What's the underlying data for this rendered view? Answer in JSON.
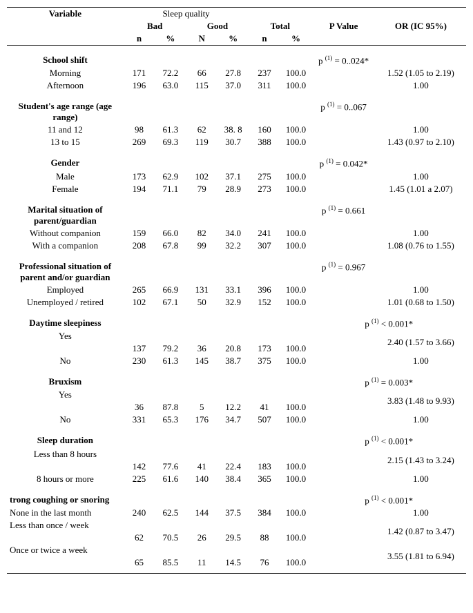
{
  "header": {
    "variable": "Variable",
    "sleep_quality": "Sleep quality",
    "bad": "Bad",
    "good": "Good",
    "total": "Total",
    "p_value": "P Value",
    "or": "OR (IC 95%)",
    "n": "n",
    "N": "N",
    "pct": "%"
  },
  "sections": [
    {
      "title": "School shift",
      "p": "p ⁽¹⁾ = 0..024*",
      "rows": [
        {
          "label": "Morning",
          "bn": "171",
          "bp": "72.2",
          "gn": "66",
          "gp": "27.8",
          "tn": "237",
          "tp": "100.0",
          "or": "1.52 (1.05 to 2.19)"
        },
        {
          "label": "Afternoon",
          "bn": "196",
          "bp": "63.0",
          "gn": "115",
          "gp": "37.0",
          "tn": "311",
          "tp": "100.0",
          "or": "1.00"
        }
      ]
    },
    {
      "title": "Student's age range (age range)",
      "p": "p ⁽¹⁾ = 0..067",
      "rows": [
        {
          "label": "11 and 12",
          "bn": "98",
          "bp": "61.3",
          "gn": "62",
          "gp": "38. 8",
          "tn": "160",
          "tp": "100.0",
          "or": "1.00"
        },
        {
          "label": "13 to 15",
          "bn": "269",
          "bp": "69.3",
          "gn": "119",
          "gp": "30.7",
          "tn": "388",
          "tp": "100.0",
          "or": "1.43 (0.97 to 2.10)"
        }
      ]
    },
    {
      "title": "Gender",
      "p": "p ⁽¹⁾ = 0.042*",
      "rows": [
        {
          "label": "Male",
          "bn": "173",
          "bp": "62.9",
          "gn": "102",
          "gp": "37.1",
          "tn": "275",
          "tp": "100.0",
          "or": "1.00"
        },
        {
          "label": "Female",
          "bn": "194",
          "bp": "71.1",
          "gn": "79",
          "gp": "28.9",
          "tn": "273",
          "tp": "100.0",
          "or": "1.45 (1.01 a 2.07)"
        }
      ]
    },
    {
      "title": "Marital situation of parent/guardian",
      "p": "p ⁽¹⁾ = 0.661",
      "rows": [
        {
          "label": "Without companion",
          "bn": "159",
          "bp": "66.0",
          "gn": "82",
          "gp": "34.0",
          "tn": "241",
          "tp": "100.0",
          "or": "1.00"
        },
        {
          "label": "With a companion",
          "bn": "208",
          "bp": "67.8",
          "gn": "99",
          "gp": "32.2",
          "tn": "307",
          "tp": "100.0",
          "or": "1.08 (0.76 to 1.55)"
        }
      ]
    },
    {
      "title": "Professional situation of parent and/or guardian",
      "p": "p ⁽¹⁾ = 0.967",
      "rows": [
        {
          "label": "Employed",
          "bn": "265",
          "bp": "66.9",
          "gn": "131",
          "gp": "33.1",
          "tn": "396",
          "tp": "100.0",
          "or": "1.00"
        },
        {
          "label": "Unemployed / retired",
          "bn": "102",
          "bp": "67.1",
          "gn": "50",
          "gp": "32.9",
          "tn": "152",
          "tp": "100.0",
          "or": "1.01 (0.68 to 1.50)"
        }
      ]
    },
    {
      "title": "Daytime sleepiness",
      "p_inline": "p ⁽¹⁾ < 0.001*",
      "rows": [
        {
          "label": "Yes",
          "bn": "137",
          "bp": "79.2",
          "gn": "36",
          "gp": "20.8",
          "tn": "173",
          "tp": "100.0",
          "or": "2.40 (1.57 to 3.66)",
          "or_two": true
        },
        {
          "label": "No",
          "bn": "230",
          "bp": "61.3",
          "gn": "145",
          "gp": "38.7",
          "tn": "375",
          "tp": "100.0",
          "or": "1.00"
        }
      ]
    },
    {
      "title": "Bruxism",
      "p_inline": "p ⁽¹⁾ = 0.003*",
      "rows": [
        {
          "label": "Yes",
          "bn": "36",
          "bp": "87.8",
          "gn": "5",
          "gp": "12.2",
          "tn": "41",
          "tp": "100.0",
          "or": "3.83 (1.48 to 9.93)",
          "or_two": true
        },
        {
          "label": "No",
          "bn": "331",
          "bp": "65.3",
          "gn": "176",
          "gp": "34.7",
          "tn": "507",
          "tp": "100.0",
          "or": "1.00"
        }
      ]
    },
    {
      "title": "Sleep duration",
      "p_inline": "p ⁽¹⁾ < 0.001*",
      "rows": [
        {
          "label": "Less than 8 hours",
          "bn": "142",
          "bp": "77.6",
          "gn": "41",
          "gp": "22.4",
          "tn": "183",
          "tp": "100.0",
          "or": "2.15 (1.43 to 3.24)",
          "or_two": true
        },
        {
          "label": "8 hours or more",
          "bn": "225",
          "bp": "61.6",
          "gn": "140",
          "gp": "38.4",
          "tn": "365",
          "tp": "100.0",
          "or": "1.00"
        }
      ]
    },
    {
      "title": "trong coughing or snoring",
      "title_left": true,
      "p_inline": "p ⁽¹⁾ < 0.001*",
      "rows": [
        {
          "label": "None in the last month",
          "bn": "240",
          "bp": "62.5",
          "gn": "144",
          "gp": "37.5",
          "tn": "384",
          "tp": "100.0",
          "or": "1.00",
          "label_left": true
        },
        {
          "label": "Less than once / week",
          "bn": "62",
          "bp": "70.5",
          "gn": "26",
          "gp": "29.5",
          "tn": "88",
          "tp": "100.0",
          "or": "1.42 (0.87 to 3.47)",
          "or_two": true,
          "label_left": true
        },
        {
          "label": "Once or twice a week",
          "bn": "65",
          "bp": "85.5",
          "gn": "11",
          "gp": "14.5",
          "tn": "76",
          "tp": "100.0",
          "or": "3.55 (1.81 to 6.94)",
          "or_two": true,
          "label_left": true
        }
      ]
    }
  ]
}
